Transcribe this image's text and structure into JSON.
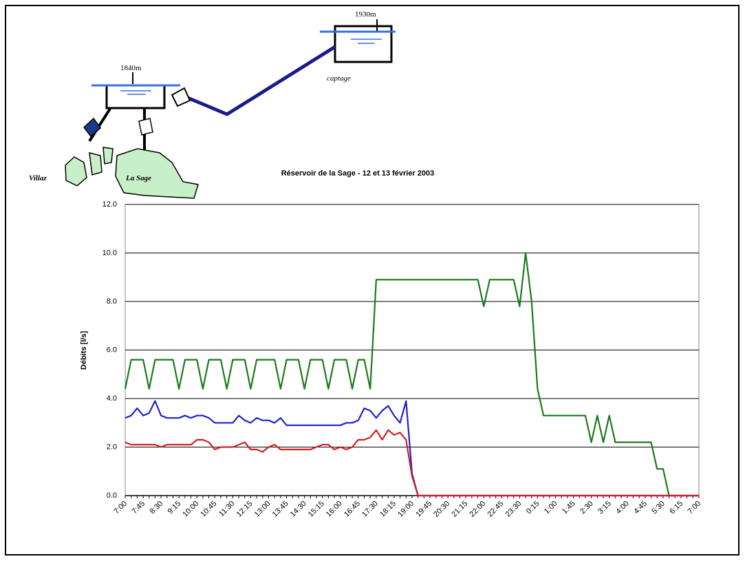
{
  "diagram": {
    "labels": [
      "1930m",
      "1840m",
      "captage",
      "Villaz",
      "La Sage"
    ]
  },
  "chart_data": {
    "type": "line",
    "title": "Réservoir de la Sage - 12 et 13 février 2003",
    "y_label": "Débits [l/s]",
    "ylim": [
      0,
      12
    ],
    "yticks": [
      {
        "value": 0,
        "label": "0.0"
      },
      {
        "value": 2,
        "label": "2.0"
      },
      {
        "value": 4,
        "label": "4.0"
      },
      {
        "value": 6,
        "label": "6.0"
      },
      {
        "value": 8,
        "label": "8.0"
      },
      {
        "value": 10,
        "label": "10.0"
      },
      {
        "value": 12,
        "label": "12.0"
      }
    ],
    "grid": true,
    "categories": [
      "7:00",
      null,
      null,
      "7:45",
      null,
      null,
      "8:30",
      null,
      null,
      "9:15",
      null,
      null,
      "10:00",
      null,
      null,
      "10:45",
      null,
      null,
      "11:30",
      null,
      null,
      "12:15",
      null,
      null,
      "13:00",
      null,
      null,
      "13:45",
      null,
      null,
      "14:30",
      null,
      null,
      "15:15",
      null,
      null,
      "16:00",
      null,
      null,
      "16:45",
      null,
      null,
      "17:30",
      null,
      null,
      "18:15",
      null,
      null,
      "19:00",
      null,
      null,
      "19:45",
      null,
      null,
      "20:30",
      null,
      null,
      "21:15",
      null,
      null,
      "22:00",
      null,
      null,
      "22:45",
      null,
      null,
      "23:30",
      null,
      null,
      "0:15",
      null,
      null,
      "1:00",
      null,
      null,
      "1:45",
      null,
      null,
      "2:30",
      null,
      null,
      "3:15",
      null,
      null,
      "4:00",
      null,
      null,
      "4:45",
      null,
      null,
      "5:30",
      null,
      null,
      "6:15",
      null,
      null,
      "7:00"
    ],
    "series": [
      {
        "color": "#1a7a1a",
        "values": [
          4.4,
          5.6,
          5.6,
          5.6,
          4.4,
          5.6,
          5.6,
          5.6,
          5.6,
          4.4,
          5.6,
          5.6,
          5.6,
          4.4,
          5.6,
          5.6,
          5.6,
          4.4,
          5.6,
          5.6,
          5.6,
          4.4,
          5.6,
          5.6,
          5.6,
          5.6,
          4.4,
          5.6,
          5.6,
          5.6,
          4.4,
          5.6,
          5.6,
          5.6,
          4.4,
          5.6,
          5.6,
          5.6,
          4.4,
          5.6,
          5.6,
          4.4,
          8.9,
          8.9,
          8.9,
          8.9,
          8.9,
          8.9,
          8.9,
          8.9,
          8.9,
          8.9,
          8.9,
          8.9,
          8.9,
          8.9,
          8.9,
          8.9,
          8.9,
          8.9,
          7.8,
          8.9,
          8.9,
          8.9,
          8.9,
          8.9,
          7.8,
          10.0,
          8.0,
          4.4,
          3.3,
          3.3,
          3.3,
          3.3,
          3.3,
          3.3,
          3.3,
          3.3,
          2.2,
          3.3,
          2.2,
          3.3,
          2.2,
          2.2,
          2.2,
          2.2,
          2.2,
          2.2,
          2.2,
          1.1,
          1.1,
          0,
          0,
          0,
          0,
          0,
          0
        ]
      },
      {
        "color": "#1f1fd0",
        "values": [
          3.2,
          3.3,
          3.6,
          3.3,
          3.4,
          3.9,
          3.3,
          3.2,
          3.2,
          3.2,
          3.3,
          3.2,
          3.3,
          3.3,
          3.2,
          3.0,
          3.0,
          3.0,
          3.0,
          3.3,
          3.1,
          3.0,
          3.2,
          3.1,
          3.1,
          3.0,
          3.2,
          2.9,
          2.9,
          2.9,
          2.9,
          2.9,
          2.9,
          2.9,
          2.9,
          2.9,
          2.9,
          3.0,
          3.0,
          3.1,
          3.6,
          3.5,
          3.2,
          3.5,
          3.7,
          3.3,
          3.0,
          3.9,
          0.9,
          0,
          0,
          0,
          0,
          0,
          0,
          0,
          0,
          0,
          0,
          0,
          0,
          0,
          0,
          0,
          0,
          0,
          0,
          0,
          0,
          0,
          0,
          0,
          0,
          0,
          0,
          0,
          0,
          0,
          0,
          0,
          0,
          0,
          0,
          0,
          0,
          0,
          0,
          0,
          0,
          0,
          0,
          0,
          0,
          0,
          0,
          0,
          0
        ]
      },
      {
        "color": "#d01f1f",
        "values": [
          2.2,
          2.1,
          2.1,
          2.1,
          2.1,
          2.1,
          2.0,
          2.1,
          2.1,
          2.1,
          2.1,
          2.1,
          2.3,
          2.3,
          2.2,
          1.9,
          2.0,
          2.0,
          2.0,
          2.1,
          2.2,
          1.9,
          1.9,
          1.8,
          2.0,
          2.1,
          1.9,
          1.9,
          1.9,
          1.9,
          1.9,
          1.9,
          2.0,
          2.1,
          2.1,
          1.9,
          2.0,
          1.9,
          2.0,
          2.3,
          2.3,
          2.4,
          2.7,
          2.3,
          2.7,
          2.5,
          2.6,
          2.3,
          0.8,
          0,
          0,
          0,
          0,
          0,
          0,
          0,
          0,
          0,
          0,
          0,
          0,
          0,
          0,
          0,
          0,
          0,
          0,
          0,
          0,
          0,
          0,
          0,
          0,
          0,
          0,
          0,
          0,
          0,
          0,
          0,
          0,
          0,
          0,
          0,
          0,
          0,
          0,
          0,
          0,
          0,
          0,
          0,
          0,
          0,
          0,
          0,
          0
        ]
      }
    ]
  }
}
